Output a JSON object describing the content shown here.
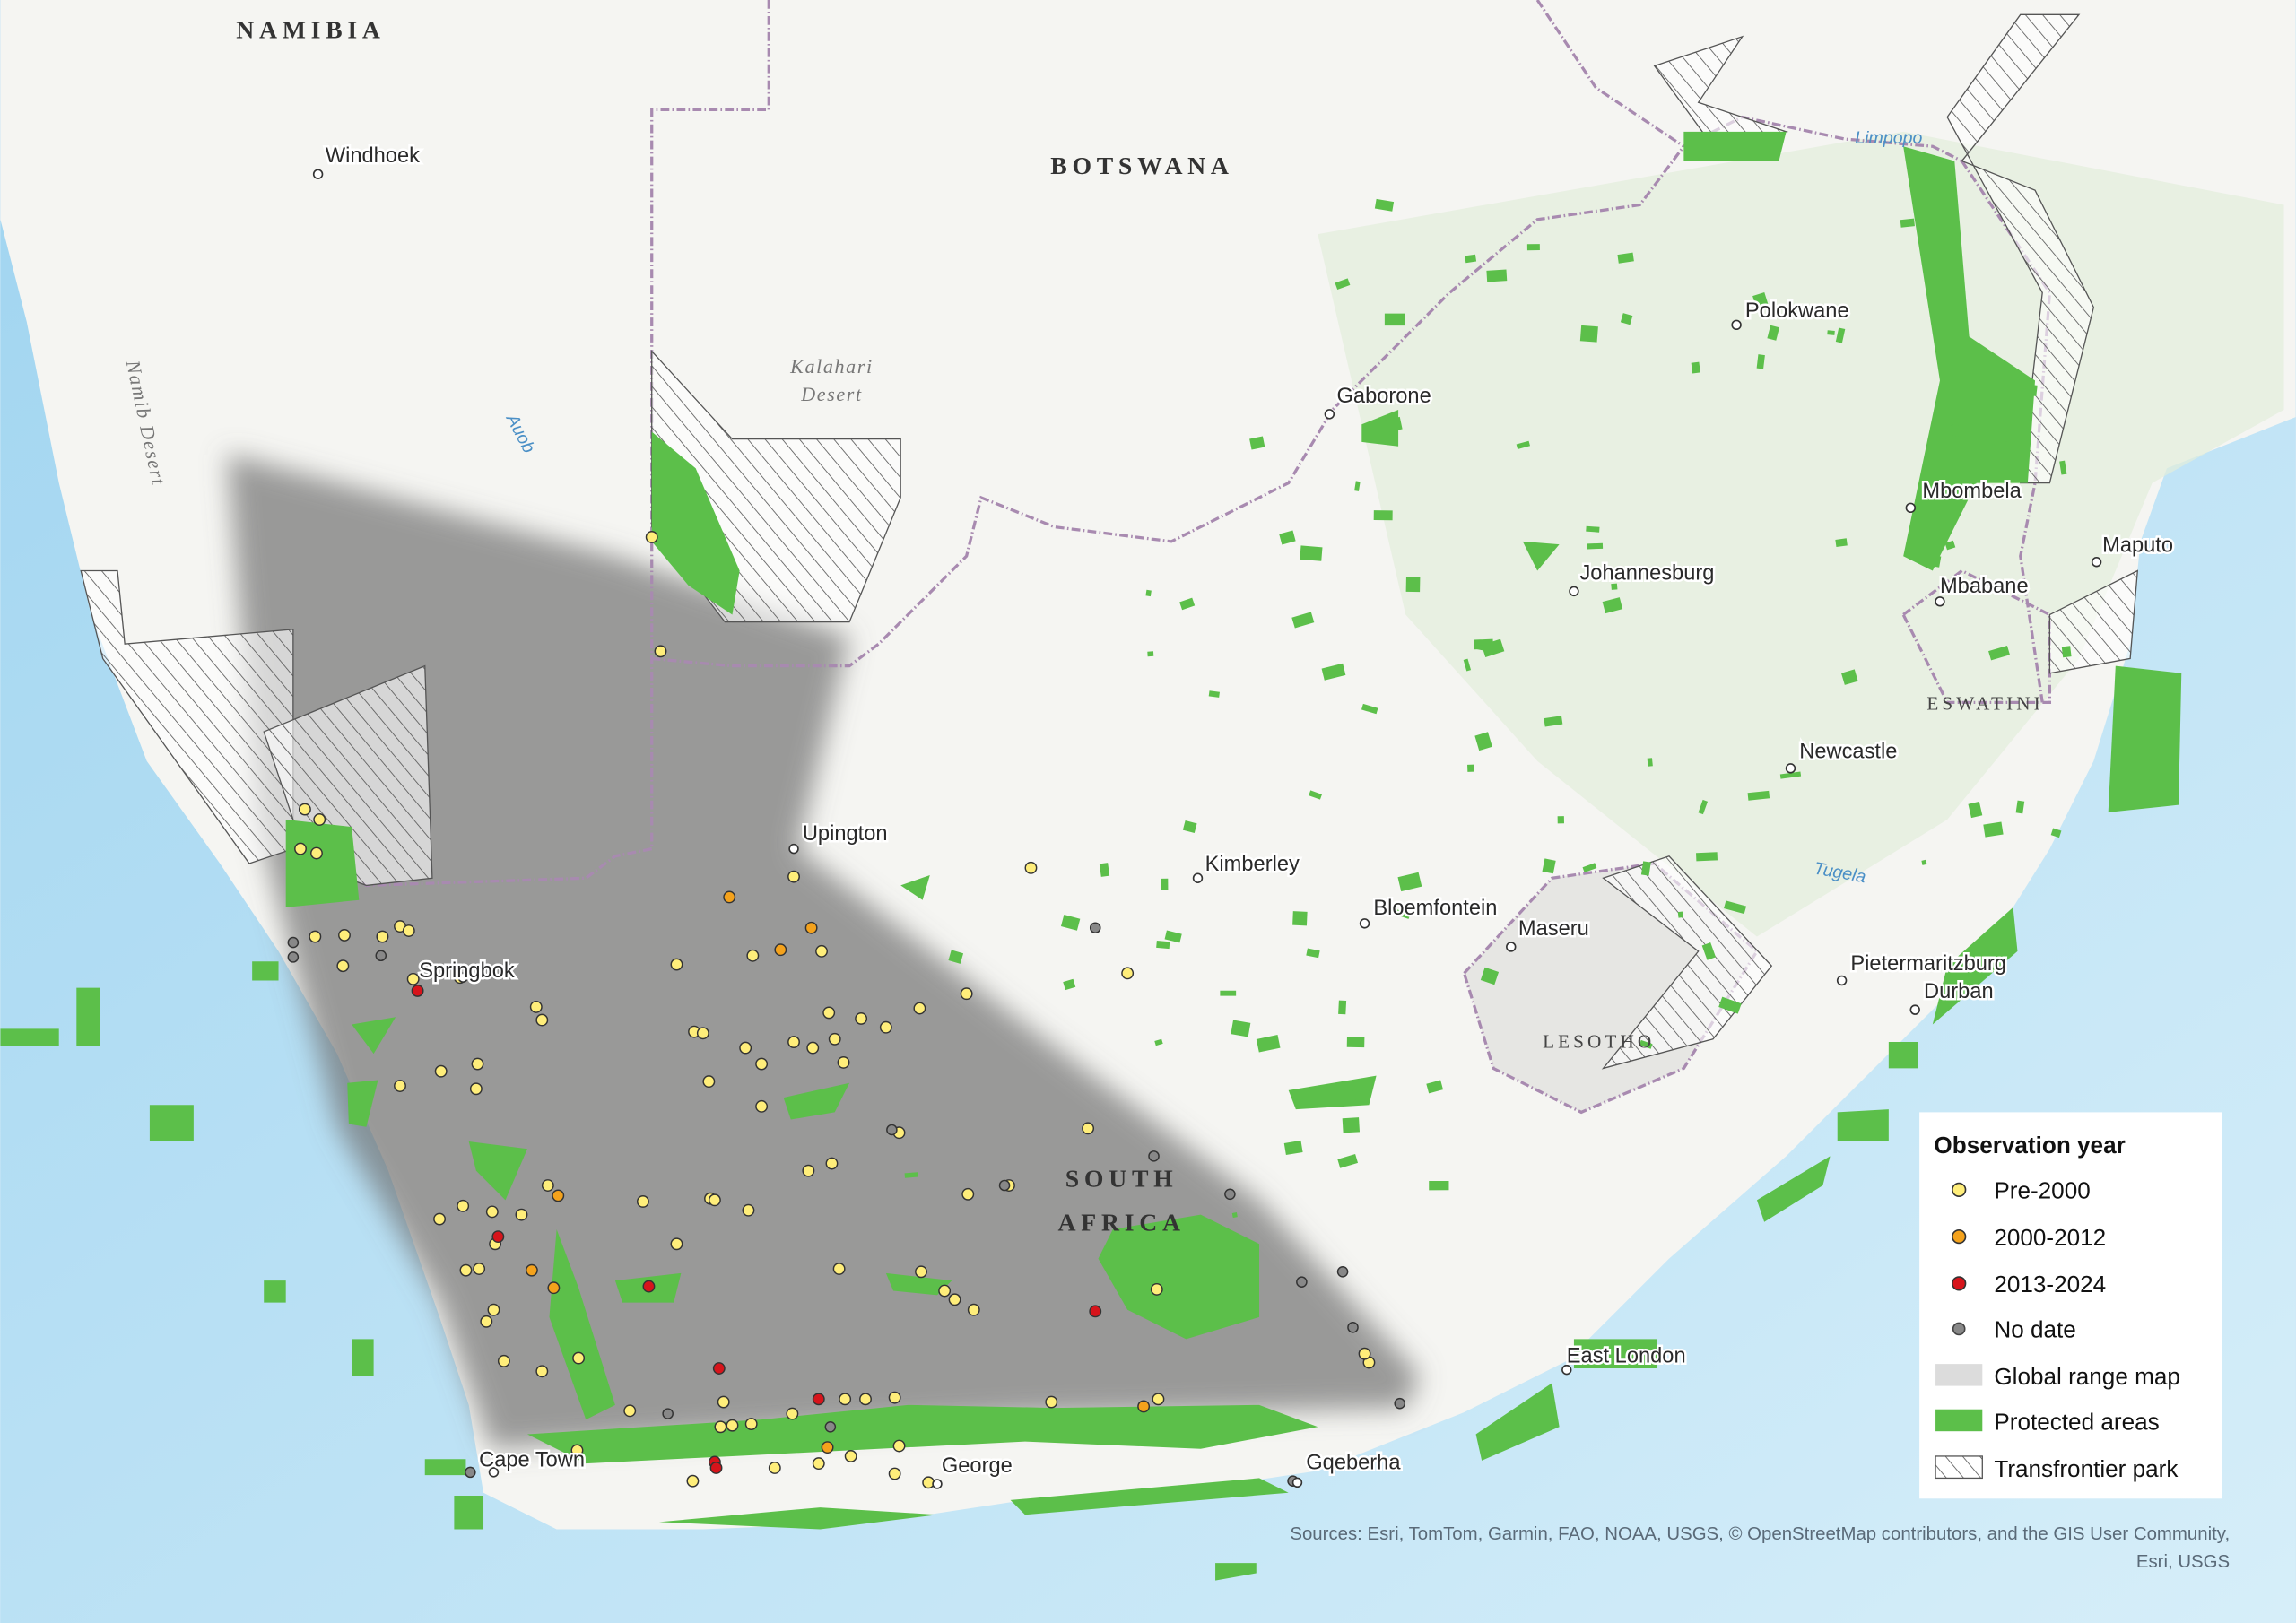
{
  "countries": [
    "NAMIBIA",
    "BOTSWANA",
    "LESOTHO",
    "ESWATINI"
  ],
  "south_africa": [
    "SOUTH",
    "AFRICA"
  ],
  "cities": [
    "Windhoek",
    "Gaborone",
    "Polokwane",
    "Mbombela",
    "Maputo",
    "Johannesburg",
    "Mbabane",
    "Newcastle",
    "Upington",
    "Kimberley",
    "Bloemfontein",
    "Maseru",
    "Pietermaritzburg",
    "Durban",
    "East London",
    "Cape Town",
    "George",
    "Gqeberha",
    "Springbok"
  ],
  "regions": {
    "kalahari": [
      "Kalahari",
      "Desert"
    ],
    "namib": "Namib Desert"
  },
  "rivers": [
    "Auob",
    "Limpopo",
    "Tugela"
  ],
  "legend": {
    "title": "Observation year",
    "items": [
      "Pre-2000",
      "2000-2012",
      "2013-2024",
      "No date",
      "Global range map",
      "Protected areas",
      "Transfrontier park"
    ]
  },
  "sources": [
    "Sources: Esri, TomTom, Garmin, FAO, NOAA, USGS, © OpenStreetMap contributors, and the GIS User Community,",
    "Esri, USGS"
  ]
}
